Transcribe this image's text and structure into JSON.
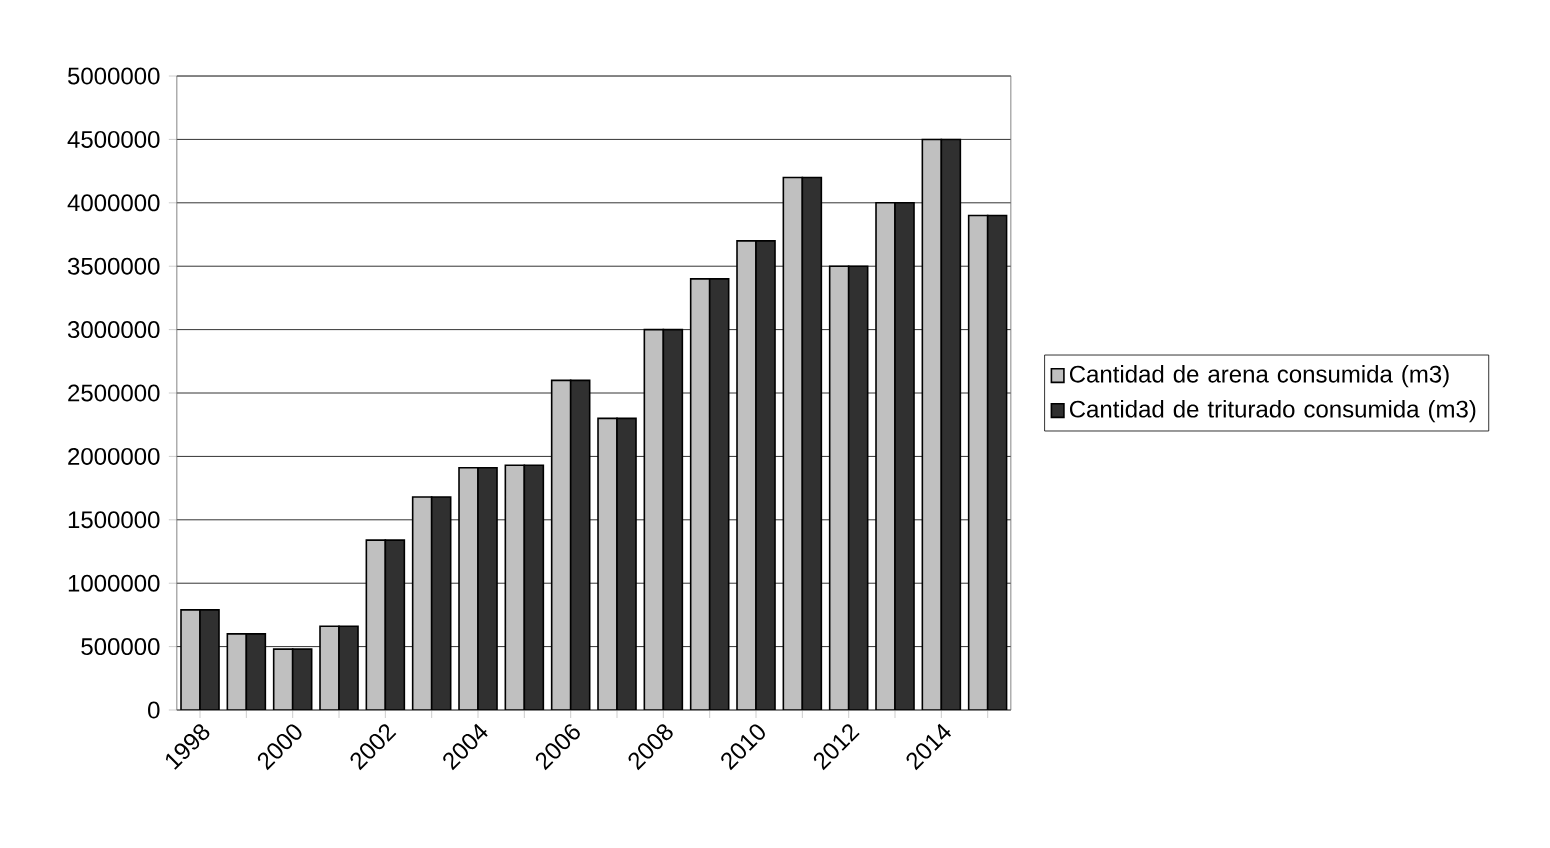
{
  "chart_data": {
    "type": "bar",
    "categories": [
      "1998",
      null,
      "2000",
      null,
      "2002",
      null,
      "2004",
      null,
      "2006",
      null,
      "2008",
      null,
      "2010",
      null,
      "2012",
      null,
      "2014",
      null
    ],
    "series": [
      {
        "name": "Cantidad de arena consumida (m3)",
        "color": "#c0c0c0",
        "values": [
          790000,
          600000,
          480000,
          660000,
          1340000,
          1680000,
          1910000,
          1930000,
          2600000,
          2300000,
          3000000,
          3400000,
          3700000,
          4200000,
          3500000,
          4000000,
          4500000,
          3900000
        ]
      },
      {
        "name": "Cantidad de triturado consumida (m3)",
        "color": "#303030",
        "values": [
          790000,
          600000,
          480000,
          660000,
          1340000,
          1680000,
          1910000,
          1930000,
          2600000,
          2300000,
          3000000,
          3400000,
          3700000,
          4200000,
          3500000,
          4000000,
          4500000,
          3900000
        ]
      }
    ],
    "ylim": [
      0,
      5000000
    ],
    "yticks": [
      0,
      500000,
      1000000,
      1500000,
      2000000,
      2500000,
      3000000,
      3500000,
      4000000,
      4500000,
      5000000
    ],
    "grid": "y",
    "legend": "right"
  }
}
